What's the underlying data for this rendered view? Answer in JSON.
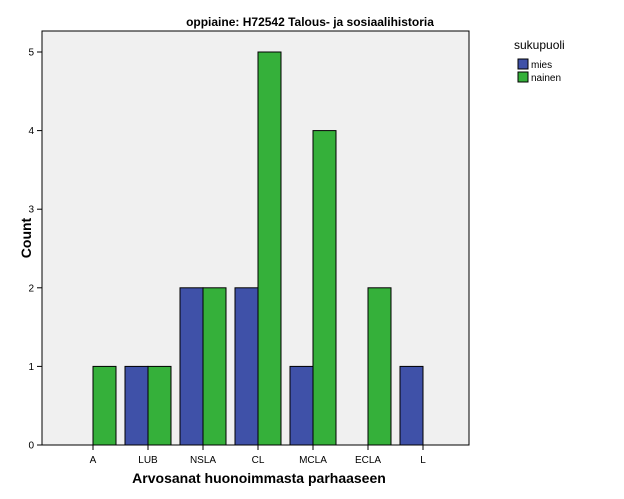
{
  "chart_data": {
    "type": "bar",
    "title": "oppiaine: H72542 Talous- ja sosiaalihistoria",
    "xlabel": "Arvosanat huonoimmasta parhaaseen",
    "ylabel": "Count",
    "categories": [
      "A",
      "LUB",
      "NSLA",
      "CL",
      "MCLA",
      "ECLA",
      "L"
    ],
    "series": [
      {
        "name": "mies",
        "color": "#3f51a8",
        "values": [
          0,
          1,
          2,
          2,
          1,
          0,
          1
        ]
      },
      {
        "name": "nainen",
        "color": "#35b03a",
        "values": [
          1,
          1,
          2,
          5,
          4,
          2,
          0
        ]
      }
    ],
    "ylim": [
      0,
      5
    ],
    "yticks": [
      0,
      1,
      2,
      3,
      4,
      5
    ],
    "grid": false,
    "legend": {
      "title": "sukupuoli",
      "position": "right"
    },
    "plot_background": "#f0f0f0"
  }
}
